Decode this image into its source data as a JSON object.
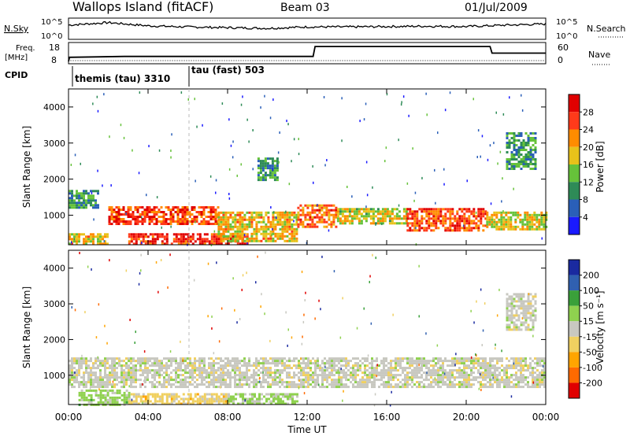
{
  "header": {
    "station": "Wallops Island (fitACF)",
    "beam": "Beam 03",
    "date": "01/Jul/2009"
  },
  "nsky_panel": {
    "left_label": "N.Sky",
    "right_label": "N.Search",
    "left_ticks": [
      "10^5",
      "10^0"
    ],
    "right_ticks": [
      "10^5",
      "10^0"
    ]
  },
  "freq_panel": {
    "left_label_top": "Freq.",
    "left_label_unit": "[MHz]",
    "right_label": "Nave",
    "left_ticks": [
      "18",
      "8"
    ],
    "right_ticks": [
      "60",
      "0"
    ]
  },
  "cpid_panel": {
    "label": "CPID",
    "segments": [
      "themis (tau) 3310",
      "tau (fast) 503"
    ]
  },
  "power_panel": {
    "ylabel": "Slant Range [km]",
    "y_ticks": [
      "4000",
      "3000",
      "2000",
      "1000"
    ],
    "colorbar_label": "Power [dB]",
    "colorbar_ticks": [
      "28",
      "24",
      "20",
      "16",
      "12",
      "8",
      "4"
    ]
  },
  "velocity_panel": {
    "ylabel": "Slant Range [km]",
    "y_ticks": [
      "4000",
      "3000",
      "2000",
      "1000"
    ],
    "colorbar_label": "Velocity [m s⁻¹]",
    "colorbar_ticks": [
      "200",
      "100",
      "50",
      "15",
      "-15",
      "-50",
      "-100",
      "-200"
    ]
  },
  "x_axis": {
    "label": "Time UT",
    "ticks": [
      "00:00",
      "04:00",
      "08:00",
      "12:00",
      "16:00",
      "20:00",
      "00:00"
    ]
  },
  "colors": {
    "power_scale": [
      "#1a1aff",
      "#2a5fb8",
      "#2e8b57",
      "#66c23a",
      "#e8c21a",
      "#ff8c00",
      "#ff3a1a",
      "#e00000"
    ],
    "velocity_scale": [
      "#e00000",
      "#ff6a00",
      "#ffa500",
      "#f0d060",
      "#c8c8c0",
      "#8fd14f",
      "#3aa03a",
      "#3060b0",
      "#1a2aa0"
    ]
  },
  "chart_data": [
    {
      "type": "line",
      "title": "N.Sky",
      "x": [
        0,
        2,
        4,
        6,
        8,
        10,
        12,
        14,
        16,
        18,
        20,
        22,
        24
      ],
      "series": [
        {
          "name": "N.Sky",
          "values": [
            3.5,
            4.2,
            3.3,
            3.0,
            2.8,
            2.6,
            3.0,
            3.0,
            3.1,
            3.2,
            3.1,
            3.5,
            3.8
          ]
        }
      ],
      "ylim": [
        0,
        5
      ],
      "xlabel": "Time UT"
    },
    {
      "type": "line",
      "title": "Freq.",
      "x": [
        0,
        0.05,
        2.8,
        12.3,
        12.4,
        21.2,
        21.3,
        24
      ],
      "series": [
        {
          "name": "Freq.",
          "values": [
            8,
            10.5,
            11,
            11,
            17,
            17,
            13,
            13
          ]
        }
      ],
      "ylim": [
        8,
        18
      ],
      "xlabel": "Time UT"
    },
    {
      "type": "heatmap",
      "title": "Power",
      "xlabel": "Time UT",
      "ylabel": "Slant Range [km]",
      "xlim": [
        0,
        24
      ],
      "ylim": [
        180,
        4500
      ],
      "colorbar_range": [
        0,
        30
      ],
      "bands": [
        {
          "t0": 0.0,
          "t1": 1.5,
          "r0": 1200,
          "r1": 1700,
          "value": 10
        },
        {
          "t0": 0.0,
          "t1": 2.0,
          "r0": 180,
          "r1": 500,
          "value": 18
        },
        {
          "t0": 2.0,
          "t1": 7.5,
          "r0": 750,
          "r1": 1250,
          "value": 24
        },
        {
          "t0": 3.0,
          "t1": 9.0,
          "r0": 200,
          "r1": 500,
          "value": 26
        },
        {
          "t0": 7.5,
          "t1": 11.5,
          "r0": 300,
          "r1": 1100,
          "value": 18
        },
        {
          "t0": 11.5,
          "t1": 13.5,
          "r0": 700,
          "r1": 1300,
          "value": 22
        },
        {
          "t0": 13.5,
          "t1": 17.0,
          "r0": 800,
          "r1": 1200,
          "value": 16
        },
        {
          "t0": 17.0,
          "t1": 21.0,
          "r0": 600,
          "r1": 1200,
          "value": 24
        },
        {
          "t0": 21.0,
          "t1": 24.0,
          "r0": 600,
          "r1": 1100,
          "value": 16
        },
        {
          "t0": 9.5,
          "t1": 10.5,
          "r0": 2000,
          "r1": 2600,
          "value": 10
        },
        {
          "t0": 22.0,
          "t1": 23.5,
          "r0": 2300,
          "r1": 3300,
          "value": 10
        }
      ]
    },
    {
      "type": "heatmap",
      "title": "Velocity",
      "xlabel": "Time UT",
      "ylabel": "Slant Range [km]",
      "xlim": [
        0,
        24
      ],
      "ylim": [
        180,
        4500
      ],
      "colorbar_range": [
        -200,
        200
      ],
      "bands": [
        {
          "t0": 0.0,
          "t1": 24.0,
          "r0": 700,
          "r1": 1500,
          "value": 0
        },
        {
          "t0": 0.5,
          "t1": 3.0,
          "r0": 180,
          "r1": 600,
          "value": 40
        },
        {
          "t0": 3.0,
          "t1": 8.0,
          "r0": 200,
          "r1": 500,
          "value": -40
        },
        {
          "t0": 8.0,
          "t1": 11.5,
          "r0": 200,
          "r1": 500,
          "value": 30
        },
        {
          "t0": 22.0,
          "t1": 23.5,
          "r0": 2300,
          "r1": 3300,
          "value": 0
        }
      ]
    }
  ]
}
